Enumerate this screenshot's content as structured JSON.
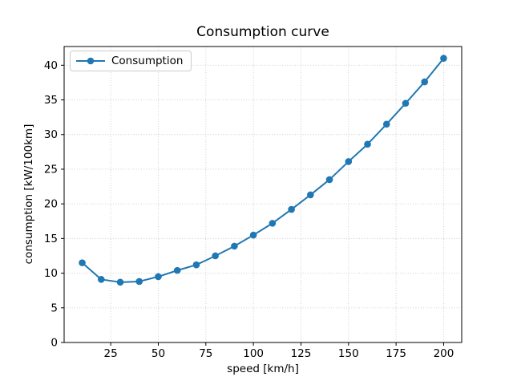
{
  "window": {
    "background": "#ffffff"
  },
  "chart_data": {
    "type": "line",
    "title": "Consumption curve",
    "xlabel": "speed [km/h]",
    "ylabel": "consumption [kW/100km]",
    "x": [
      10,
      20,
      30,
      40,
      50,
      60,
      70,
      80,
      90,
      100,
      110,
      120,
      130,
      140,
      150,
      160,
      170,
      180,
      190,
      200
    ],
    "series": [
      {
        "name": "Consumption",
        "color": "#1f77b4",
        "marker": "circle",
        "values": [
          11.5,
          9.1,
          8.7,
          8.8,
          9.5,
          10.4,
          11.2,
          12.5,
          13.9,
          15.5,
          17.2,
          19.2,
          21.3,
          23.5,
          26.1,
          28.6,
          31.5,
          34.5,
          37.6,
          41.0
        ]
      }
    ],
    "xlim": [
      0.5,
      209.5
    ],
    "ylim": [
      0,
      42.7
    ],
    "xticks": [
      25,
      50,
      75,
      100,
      125,
      150,
      175,
      200
    ],
    "yticks": [
      0,
      5,
      10,
      15,
      20,
      25,
      30,
      35,
      40
    ],
    "grid": true,
    "grid_style": "dotted",
    "legend": {
      "position": "upper left",
      "entries": [
        "Consumption"
      ]
    },
    "colors": {
      "line": "#1f77b4",
      "grid": "#c8c8c8",
      "spine": "#000000",
      "text": "#000000",
      "legend_border": "#cccccc"
    }
  }
}
